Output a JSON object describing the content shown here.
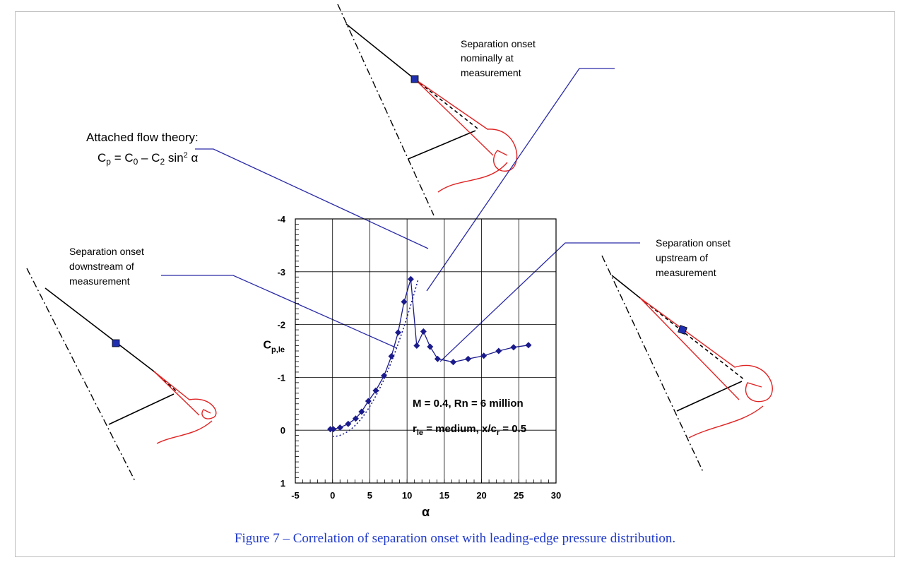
{
  "caption": "Figure 7 – Correlation of separation onset with leading-edge pressure distribution.",
  "annotations": {
    "nominal_1": "Separation onset",
    "nominal_2": "nominally at",
    "nominal_3": "measurement",
    "downstream_1": "Separation onset",
    "downstream_2": "downstream of",
    "downstream_3": "measurement",
    "upstream_1": "Separation onset",
    "upstream_2": "upstream of",
    "upstream_3": "measurement",
    "theory_1": "Attached flow theory:",
    "theory_C": "C",
    "theory_p": "p",
    "theory_eq": " = C",
    "theory_0": "0",
    "theory_minus": " – C",
    "theory_2": "2",
    "theory_sin": " sin",
    "theory_sq": "2",
    "theory_alpha": " α",
    "cond_1": "M = 0.4, Rn = 6 million",
    "cond_r": "r",
    "cond_le": "le",
    "cond_mid": " = medium, x/c",
    "cond_rsub": "r",
    "cond_end": " = 0.5"
  },
  "chart_data": {
    "type": "line",
    "xlabel": "α",
    "ylabel_main": "C",
    "ylabel_sub": "p,le",
    "xlim": [
      -5,
      30
    ],
    "ylim": [
      1,
      -4
    ],
    "y_inverted": true,
    "grid": true,
    "x_ticks": [
      "-5",
      "0",
      "5",
      "10",
      "15",
      "20",
      "25",
      "30"
    ],
    "x_tick_values": [
      -5,
      0,
      5,
      10,
      15,
      20,
      25,
      30
    ],
    "y_ticks": [
      "1",
      "0",
      "-1",
      "-2",
      "-3",
      "-4"
    ],
    "y_tick_values": [
      1,
      0,
      -1,
      -2,
      -3,
      -4
    ],
    "series": [
      {
        "marker": "diamond",
        "color": "#1a1a8c",
        "x": [
          -0.3,
          0.1,
          1.0,
          2.1,
          3.1,
          3.9,
          4.8,
          5.8,
          6.9,
          7.9,
          8.8,
          9.6,
          10.5,
          11.3,
          12.2,
          13.1,
          14.1,
          16.2,
          18.2,
          20.3,
          22.3,
          24.3,
          26.3
        ],
        "y": [
          -0.02,
          -0.02,
          -0.05,
          -0.12,
          -0.22,
          -0.35,
          -0.55,
          -0.75,
          -1.03,
          -1.4,
          -1.85,
          -2.43,
          -2.86,
          -1.6,
          -1.87,
          -1.58,
          -1.35,
          -1.29,
          -1.35,
          -1.41,
          -1.5,
          -1.57,
          -1.61
        ]
      }
    ],
    "theory_curve": {
      "style": "dotted",
      "color": "#1a1a8c",
      "x_start": 0,
      "x_end": 11.5
    }
  },
  "colors": {
    "curve": "#1a1a8c",
    "leader": "#2a2aa8",
    "vortex": "#e02424",
    "caption": "#1f39c9"
  }
}
